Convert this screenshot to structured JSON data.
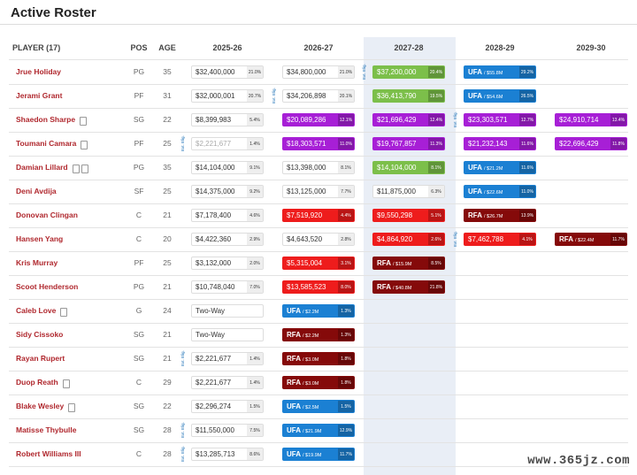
{
  "header": {
    "title": "Active Roster"
  },
  "watermark": "www.365jz.com",
  "table": {
    "columns": [
      "PLAYER (17)",
      "POS",
      "AGE",
      "2025-26",
      "2026-27",
      "2027-28",
      "2028-29",
      "2029-30"
    ],
    "rows": [
      {
        "player": "Jrue Holiday",
        "pos": "PG",
        "age": 35,
        "cells": [
          {
            "text": "$32,400,000",
            "pct": "21.0%"
          },
          {
            "text": "$34,800,000",
            "pct": "21.0%"
          },
          {
            "text": "$37,200,000",
            "pct": "20.4%",
            "color": "#7cbf4a",
            "ext": "Ext. Elig."
          },
          {
            "tag": "UFA",
            "text": "/ $55.8M",
            "pct": "29.2%",
            "color": "#1b80d3"
          },
          null
        ]
      },
      {
        "player": "Jerami Grant",
        "pos": "PF",
        "age": 31,
        "cells": [
          {
            "text": "$32,000,001",
            "pct": "20.7%"
          },
          {
            "text": "$34,206,898",
            "pct": "20.1%",
            "ext": "Ext. Elig."
          },
          {
            "text": "$36,413,790",
            "pct": "19.5%",
            "color": "#7cbf4a"
          },
          {
            "tag": "UFA",
            "text": "/ $54.6M",
            "pct": "26.5%",
            "color": "#1b80d3"
          },
          null
        ]
      },
      {
        "player": "Shaedon Sharpe",
        "pos": "SG",
        "age": 22,
        "cells": [
          {
            "text": "$8,399,983",
            "pct": "5.4%"
          },
          {
            "text": "$20,089,286",
            "pct": "12.1%",
            "color": "#a71fd6"
          },
          {
            "text": "$21,696,429",
            "pct": "12.4%",
            "color": "#a71fd6"
          },
          {
            "text": "$23,303,571",
            "pct": "12.7%",
            "color": "#a71fd6",
            "ext": "Ext. Elig."
          },
          {
            "text": "$24,910,714",
            "pct": "13.4%",
            "color": "#a71fd6"
          }
        ]
      },
      {
        "player": "Toumani Camara",
        "pos": "PF",
        "age": 25,
        "cells": [
          {
            "text": "$2,221,677",
            "pct": "1.4%",
            "ext": "Ext. Elig.",
            "text_color": "#aaaaaa"
          },
          {
            "text": "$18,303,571",
            "pct": "11.0%",
            "color": "#a71fd6"
          },
          {
            "text": "$19,767,857",
            "pct": "11.3%",
            "color": "#a71fd6"
          },
          {
            "text": "$21,232,143",
            "pct": "11.6%",
            "color": "#a71fd6"
          },
          {
            "text": "$22,696,429",
            "pct": "11.8%",
            "color": "#a71fd6"
          }
        ]
      },
      {
        "player": "Damian Lillard",
        "pos": "PG",
        "age": 35,
        "cells": [
          {
            "text": "$14,104,000",
            "pct": "9.1%"
          },
          {
            "text": "$13,398,000",
            "pct": "8.1%"
          },
          {
            "text": "$14,104,000",
            "pct": "8.1%",
            "color": "#7cbf4a"
          },
          {
            "tag": "UFA",
            "text": "/ $21.2M",
            "pct": "11.6%",
            "color": "#1b80d3"
          },
          null
        ]
      },
      {
        "player": "Deni Avdija",
        "pos": "SF",
        "age": 25,
        "cells": [
          {
            "text": "$14,375,000",
            "pct": "9.2%"
          },
          {
            "text": "$13,125,000",
            "pct": "7.7%"
          },
          {
            "text": "$11,875,000",
            "pct": "6.3%"
          },
          {
            "tag": "UFA",
            "text": "/ $22.6M",
            "pct": "11.0%",
            "color": "#1b80d3"
          },
          null
        ]
      },
      {
        "player": "Donovan Clingan",
        "pos": "C",
        "age": 21,
        "cells": [
          {
            "text": "$7,178,400",
            "pct": "4.6%"
          },
          {
            "text": "$7,519,920",
            "pct": "4.4%",
            "color": "#ee1c1c"
          },
          {
            "text": "$9,550,298",
            "pct": "5.1%",
            "color": "#ee1c1c"
          },
          {
            "tag": "RFA",
            "text": "/ $26.7M",
            "pct": "13.9%",
            "color": "#850a0a"
          },
          null
        ]
      },
      {
        "player": "Hansen Yang",
        "pos": "C",
        "age": 20,
        "cells": [
          {
            "text": "$4,422,360",
            "pct": "2.9%"
          },
          {
            "text": "$4,643,520",
            "pct": "2.8%"
          },
          {
            "text": "$4,864,920",
            "pct": "2.6%",
            "color": "#ee1c1c"
          },
          {
            "text": "$7,462,788",
            "pct": "4.1%",
            "color": "#ee1c1c",
            "ext": "Ext. Elig."
          },
          {
            "tag": "RFA",
            "text": "/ $22.4M",
            "pct": "11.7%",
            "color": "#850a0a"
          }
        ]
      },
      {
        "player": "Kris Murray",
        "pos": "PF",
        "age": 25,
        "cells": [
          {
            "text": "$3,132,000",
            "pct": "2.0%"
          },
          {
            "text": "$5,315,004",
            "pct": "3.1%",
            "color": "#ee1c1c"
          },
          {
            "tag": "RFA",
            "text": "/ $15.9M",
            "pct": "8.5%",
            "color": "#850a0a"
          },
          null,
          null
        ]
      },
      {
        "player": "Scoot Henderson",
        "pos": "PG",
        "age": 21,
        "cells": [
          {
            "text": "$10,748,040",
            "pct": "7.0%"
          },
          {
            "text": "$13,585,523",
            "pct": "8.0%",
            "color": "#ee1c1c"
          },
          {
            "tag": "RFA",
            "text": "/ $40.8M",
            "pct": "21.8%",
            "color": "#850a0a"
          },
          null,
          null
        ]
      },
      {
        "player": "Caleb Love",
        "pos": "G",
        "age": 24,
        "cells": [
          {
            "text": "Two-Way"
          },
          {
            "tag": "UFA",
            "text": "/ $2.2M",
            "pct": "1.3%",
            "color": "#1b80d3"
          },
          null,
          null,
          null
        ]
      },
      {
        "player": "Sidy Cissoko",
        "pos": "SG",
        "age": 21,
        "cells": [
          {
            "text": "Two-Way"
          },
          {
            "tag": "RFA",
            "text": "/ $2.2M",
            "pct": "1.3%",
            "color": "#850a0a"
          },
          null,
          null,
          null
        ]
      },
      {
        "player": "Rayan Rupert",
        "pos": "SG",
        "age": 21,
        "cells": [
          {
            "text": "$2,221,677",
            "pct": "1.4%",
            "ext": "Ext. Elig."
          },
          {
            "tag": "RFA",
            "text": "/ $3.0M",
            "pct": "1.8%",
            "color": "#850a0a"
          },
          null,
          null,
          null
        ]
      },
      {
        "player": "Duop Reath",
        "pos": "C",
        "age": 29,
        "cells": [
          {
            "text": "$2,221,677",
            "pct": "1.4%"
          },
          {
            "tag": "RFA",
            "text": "/ $3.0M",
            "pct": "1.8%",
            "color": "#850a0a"
          },
          null,
          null,
          null
        ]
      },
      {
        "player": "Blake Wesley",
        "pos": "SG",
        "age": 22,
        "cells": [
          {
            "text": "$2,296,274",
            "pct": "1.5%"
          },
          {
            "tag": "UFA",
            "text": "/ $2.5M",
            "pct": "1.5%",
            "color": "#1b80d3"
          },
          null,
          null,
          null
        ]
      },
      {
        "player": "Matisse Thybulle",
        "pos": "SG",
        "age": 28,
        "cells": [
          {
            "text": "$11,550,000",
            "pct": "7.5%",
            "ext": "Ext. Elig."
          },
          {
            "tag": "UFA",
            "text": "/ $21.9M",
            "pct": "12.9%",
            "color": "#1b80d3"
          },
          null,
          null,
          null
        ]
      },
      {
        "player": "Robert Williams III",
        "pos": "C",
        "age": 28,
        "cells": [
          {
            "text": "$13,285,713",
            "pct": "8.6%",
            "ext": "Ext. Elig."
          },
          {
            "tag": "UFA",
            "text": "/ $19.9M",
            "pct": "11.7%",
            "color": "#1b80d3"
          },
          null,
          null,
          null
        ]
      }
    ]
  }
}
